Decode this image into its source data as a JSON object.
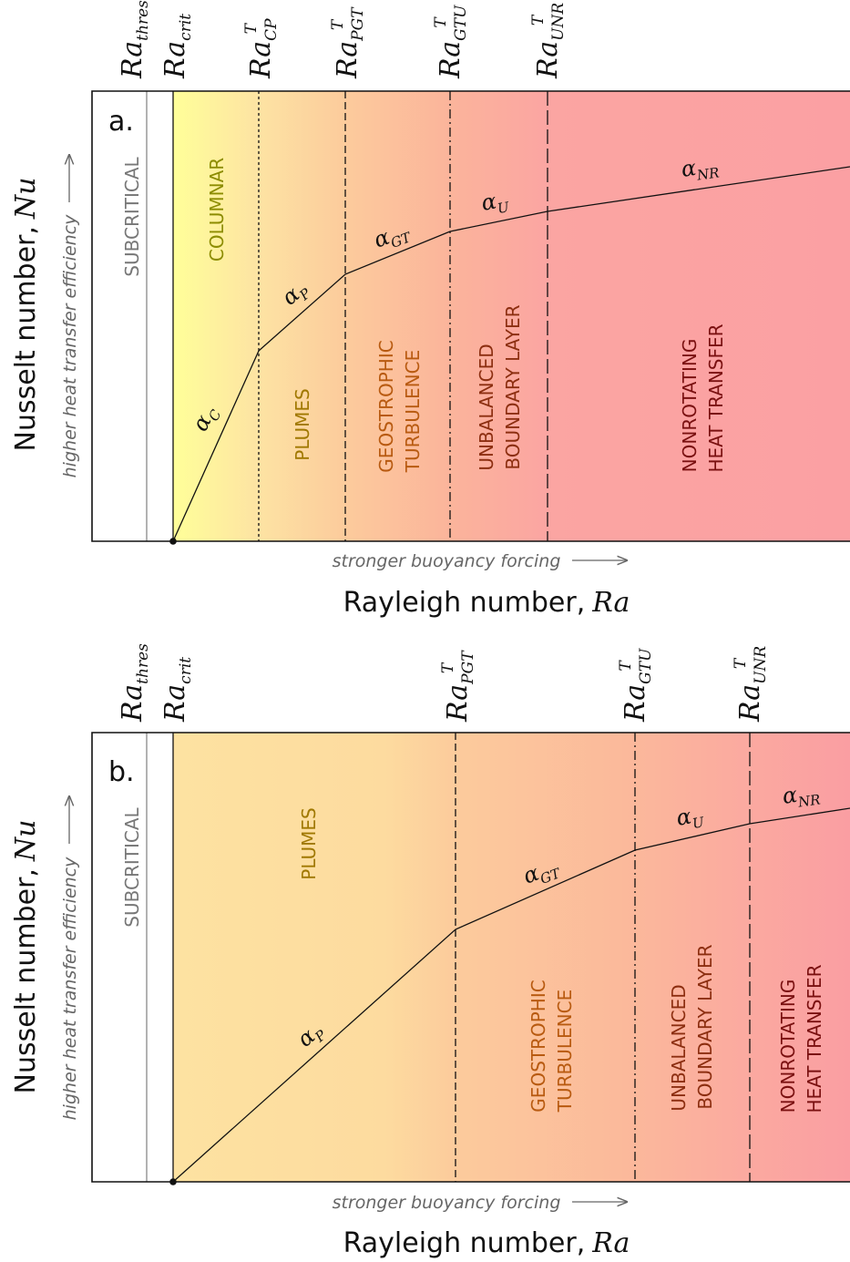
{
  "colors": {
    "columnar": "#ffff99",
    "plumes": "#fde2a1",
    "geostrophic": "#fcc89a",
    "unbalanced": "#fbb29a",
    "nonrotating": "#fba0a0",
    "subcritical": "#ffffff",
    "text_columnar": "#8c8c00",
    "text_plumes": "#a07800",
    "text_geostrophic": "#b85a10",
    "text_unbalanced": "#8c2e10",
    "text_nonrotating": "#7a1010",
    "text_subcritical": "#777777"
  },
  "axes": {
    "y_title": "Nusselt number,",
    "y_var": "Nu",
    "y_hint": "higher heat transfer efficiency",
    "x_title": "Rayleigh number,",
    "x_var": "Ra",
    "x_hint": "stronger buoyancy forcing"
  },
  "panel_a": {
    "letter": "a.",
    "thresholds": [
      {
        "base": "Ra",
        "sub": "thres",
        "sup": ""
      },
      {
        "base": "Ra",
        "sub": "crit",
        "sup": ""
      },
      {
        "base": "Ra",
        "sub": "CP",
        "sup": "T"
      },
      {
        "base": "Ra",
        "sub": "PGT",
        "sup": "T"
      },
      {
        "base": "Ra",
        "sub": "GTU",
        "sup": "T"
      },
      {
        "base": "Ra",
        "sub": "UNR",
        "sup": "T"
      }
    ],
    "regimes": {
      "subcritical": "SUBCRITICAL",
      "columnar": "COLUMNAR",
      "plumes": "PLUMES",
      "geostrophic_1": "GEOSTROPHIC",
      "geostrophic_2": "TURBULENCE",
      "unbalanced_1": "UNBALANCED",
      "unbalanced_2": "BOUNDARY LAYER",
      "nonrotating_1": "NONROTATING",
      "nonrotating_2": "HEAT TRANSFER"
    },
    "slopes": [
      {
        "base": "α",
        "sub": "C"
      },
      {
        "base": "α",
        "sub": "P"
      },
      {
        "base": "α",
        "sub": "GT"
      },
      {
        "base": "α",
        "sub": "U"
      },
      {
        "base": "α",
        "sub": "NR"
      }
    ]
  },
  "panel_b": {
    "letter": "b.",
    "thresholds": [
      {
        "base": "Ra",
        "sub": "thres",
        "sup": ""
      },
      {
        "base": "Ra",
        "sub": "crit",
        "sup": ""
      },
      {
        "base": "Ra",
        "sub": "PGT",
        "sup": "T"
      },
      {
        "base": "Ra",
        "sub": "GTU",
        "sup": "T"
      },
      {
        "base": "Ra",
        "sub": "UNR",
        "sup": "T"
      }
    ],
    "regimes": {
      "subcritical": "SUBCRITICAL",
      "plumes": "PLUMES",
      "geostrophic_1": "GEOSTROPHIC",
      "geostrophic_2": "TURBULENCE",
      "unbalanced_1": "UNBALANCED",
      "unbalanced_2": "BOUNDARY LAYER",
      "nonrotating_1": "NONROTATING",
      "nonrotating_2": "HEAT TRANSFER"
    },
    "slopes": [
      {
        "base": "α",
        "sub": "P"
      },
      {
        "base": "α",
        "sub": "GT"
      },
      {
        "base": "α",
        "sub": "U"
      },
      {
        "base": "α",
        "sub": "NR"
      }
    ]
  }
}
